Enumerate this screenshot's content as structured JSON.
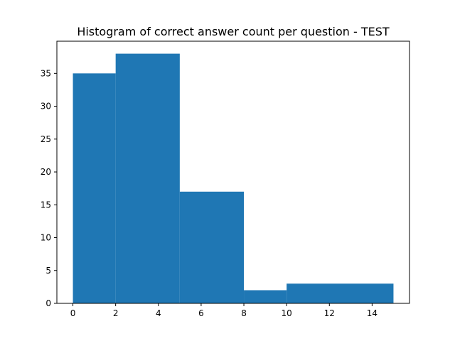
{
  "chart_data": {
    "type": "bar",
    "title": "Histogram of correct answer count per question - TEST",
    "xlabel": "",
    "ylabel": "",
    "bins": [
      {
        "start": 0,
        "end": 2,
        "count": 35
      },
      {
        "start": 2,
        "end": 5,
        "count": 38
      },
      {
        "start": 5,
        "end": 8,
        "count": 17
      },
      {
        "start": 8,
        "end": 10,
        "count": 2
      },
      {
        "start": 10,
        "end": 15,
        "count": 3
      }
    ],
    "xlim": [
      -0.75,
      15.75
    ],
    "ylim": [
      0,
      39.9
    ],
    "xticks": [
      0,
      2,
      4,
      6,
      8,
      10,
      12,
      14
    ],
    "yticks": [
      0,
      5,
      10,
      15,
      20,
      25,
      30,
      35
    ],
    "grid": false,
    "legend": "none",
    "bar_color": "#1f77b4"
  }
}
